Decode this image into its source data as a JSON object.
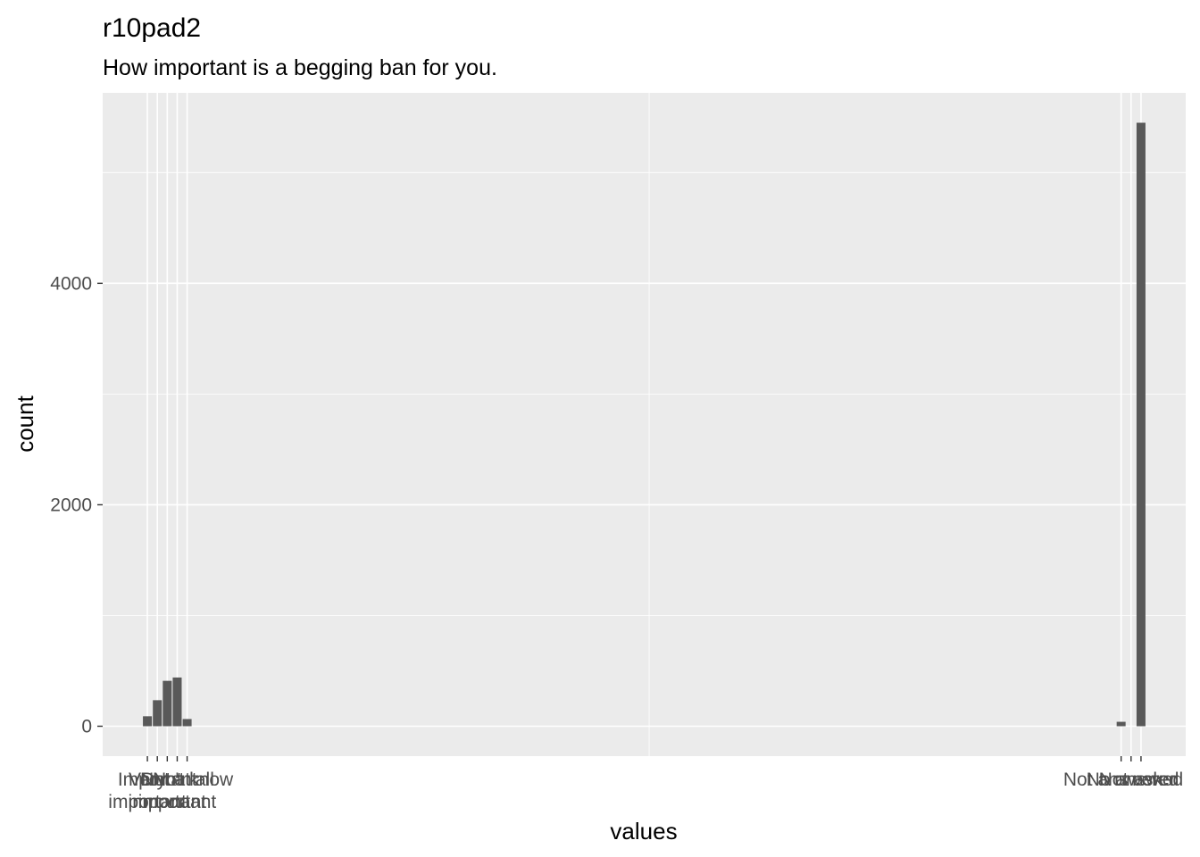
{
  "chart_data": {
    "type": "bar",
    "title": "r10pad2",
    "subtitle": "How important is a begging ban for you.",
    "xlabel": "values",
    "ylabel": "count",
    "categories": [
      "Very important",
      "Important",
      "Not important",
      "Not at all important",
      "Don't know",
      "Not answered",
      "No answer",
      "Not asked"
    ],
    "x_codes": [
      1,
      2,
      3,
      4,
      5,
      99,
      100,
      101
    ],
    "values": [
      90,
      235,
      410,
      440,
      65,
      40,
      0,
      5450
    ],
    "x_tick_labels": [
      {
        "x": 1,
        "lines": [
          "Very",
          "important"
        ]
      },
      {
        "x": 2,
        "lines": [
          "Important"
        ]
      },
      {
        "x": 3,
        "lines": [
          "Not",
          "important"
        ]
      },
      {
        "x": 4,
        "lines": [
          "Not at all",
          "important"
        ]
      },
      {
        "x": 5,
        "lines": [
          "Don't know"
        ]
      },
      {
        "x": 99,
        "lines": [
          "Not answered"
        ]
      },
      {
        "x": 100,
        "lines": [
          "No answer"
        ]
      },
      {
        "x": 101,
        "lines": [
          "Not asked"
        ]
      }
    ],
    "xlim": [
      -3.5,
      105.5
    ],
    "ylim": [
      -270,
      5720
    ],
    "y_major_ticks": [
      0,
      2000,
      4000
    ],
    "y_minor_ticks": [
      1000,
      3000,
      5000
    ],
    "x_minor_gridlines": [
      51.5
    ],
    "grid": true,
    "colors": {
      "panel": "#ebebeb",
      "gridline": "#ffffff",
      "bar": "#595959",
      "tick_text": "#4d4d4d",
      "tick_mark": "#333333"
    }
  }
}
